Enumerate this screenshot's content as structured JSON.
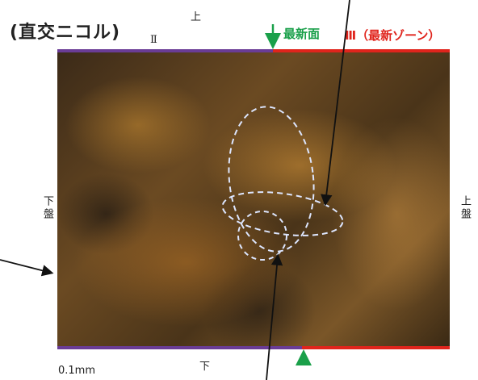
{
  "title": "(直交ニコル)",
  "orientation": {
    "top": "上",
    "bottom": "下",
    "left_side": "下盤",
    "right_side": "上盤"
  },
  "zones": {
    "zone_ii": "Ⅱ",
    "newest_surface": "最新面",
    "zone_iii": "Ⅲ（最新ゾーン）"
  },
  "scale": {
    "label": "0.1mm"
  },
  "colors": {
    "zone_ii_line": "#6a3c96",
    "zone_iii_line": "#e0241c",
    "marker_arrow": "#1aa04a",
    "pointer_arrow": "#111111",
    "ellipse": "#dde6ff"
  },
  "image": {
    "description_icon": "thin-section-micrograph"
  }
}
